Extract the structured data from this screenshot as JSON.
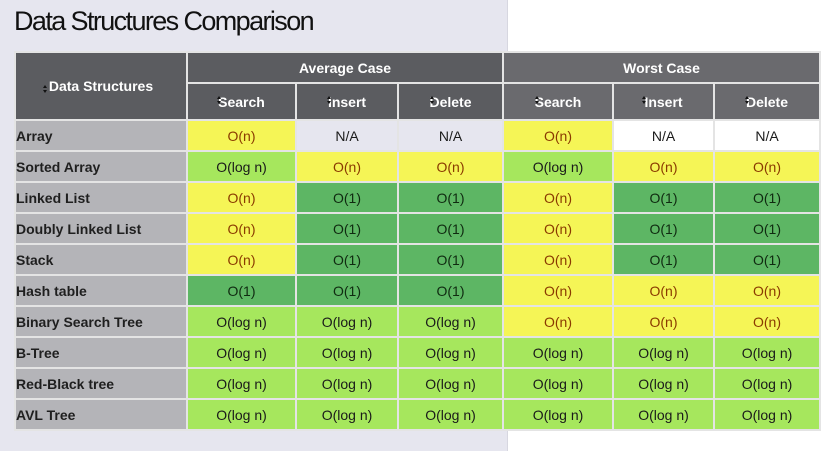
{
  "title": "Data Structures Comparison",
  "header": {
    "row_label": "Data Structures",
    "groups": [
      "Average Case",
      "Worst Case"
    ],
    "ops": [
      "Search",
      "Insert",
      "Delete",
      "Search",
      "Insert",
      "Delete"
    ]
  },
  "colors": {
    "yellow": "#f5f556",
    "yellow_green": "#a6e75d",
    "green": "#5db664",
    "header": "#5b5c60"
  },
  "rows": [
    {
      "name": "Array",
      "cells": [
        {
          "text": "O(n)",
          "color": "yellow"
        },
        {
          "text": "N/A",
          "color": "none"
        },
        {
          "text": "N/A",
          "color": "none"
        },
        {
          "text": "O(n)",
          "color": "yellow"
        },
        {
          "text": "N/A",
          "color": "none"
        },
        {
          "text": "N/A",
          "color": "none"
        }
      ]
    },
    {
      "name": "Sorted Array",
      "cells": [
        {
          "text": "O(log n)",
          "color": "yellow_green"
        },
        {
          "text": "O(n)",
          "color": "yellow"
        },
        {
          "text": "O(n)",
          "color": "yellow"
        },
        {
          "text": "O(log n)",
          "color": "yellow_green"
        },
        {
          "text": "O(n)",
          "color": "yellow"
        },
        {
          "text": "O(n)",
          "color": "yellow"
        }
      ]
    },
    {
      "name": "Linked List",
      "cells": [
        {
          "text": "O(n)",
          "color": "yellow"
        },
        {
          "text": "O(1)",
          "color": "green"
        },
        {
          "text": "O(1)",
          "color": "green"
        },
        {
          "text": "O(n)",
          "color": "yellow"
        },
        {
          "text": "O(1)",
          "color": "green"
        },
        {
          "text": "O(1)",
          "color": "green"
        }
      ]
    },
    {
      "name": "Doubly Linked List",
      "cells": [
        {
          "text": "O(n)",
          "color": "yellow"
        },
        {
          "text": "O(1)",
          "color": "green"
        },
        {
          "text": "O(1)",
          "color": "green"
        },
        {
          "text": "O(n)",
          "color": "yellow"
        },
        {
          "text": "O(1)",
          "color": "green"
        },
        {
          "text": "O(1)",
          "color": "green"
        }
      ]
    },
    {
      "name": "Stack",
      "cells": [
        {
          "text": "O(n)",
          "color": "yellow"
        },
        {
          "text": "O(1)",
          "color": "green"
        },
        {
          "text": "O(1)",
          "color": "green"
        },
        {
          "text": "O(n)",
          "color": "yellow"
        },
        {
          "text": "O(1)",
          "color": "green"
        },
        {
          "text": "O(1)",
          "color": "green"
        }
      ]
    },
    {
      "name": "Hash table",
      "cells": [
        {
          "text": "O(1)",
          "color": "green"
        },
        {
          "text": "O(1)",
          "color": "green"
        },
        {
          "text": "O(1)",
          "color": "green"
        },
        {
          "text": "O(n)",
          "color": "yellow"
        },
        {
          "text": "O(n)",
          "color": "yellow"
        },
        {
          "text": "O(n)",
          "color": "yellow"
        }
      ]
    },
    {
      "name": "Binary Search Tree",
      "cells": [
        {
          "text": "O(log n)",
          "color": "yellow_green"
        },
        {
          "text": "O(log n)",
          "color": "yellow_green"
        },
        {
          "text": "O(log n)",
          "color": "yellow_green"
        },
        {
          "text": "O(n)",
          "color": "yellow"
        },
        {
          "text": "O(n)",
          "color": "yellow"
        },
        {
          "text": "O(n)",
          "color": "yellow"
        }
      ]
    },
    {
      "name": "B-Tree",
      "cells": [
        {
          "text": "O(log n)",
          "color": "yellow_green"
        },
        {
          "text": "O(log n)",
          "color": "yellow_green"
        },
        {
          "text": "O(log n)",
          "color": "yellow_green"
        },
        {
          "text": "O(log n)",
          "color": "yellow_green"
        },
        {
          "text": "O(log n)",
          "color": "yellow_green"
        },
        {
          "text": "O(log n)",
          "color": "yellow_green"
        }
      ]
    },
    {
      "name": "Red-Black tree",
      "cells": [
        {
          "text": "O(log n)",
          "color": "yellow_green"
        },
        {
          "text": "O(log n)",
          "color": "yellow_green"
        },
        {
          "text": "O(log n)",
          "color": "yellow_green"
        },
        {
          "text": "O(log n)",
          "color": "yellow_green"
        },
        {
          "text": "O(log n)",
          "color": "yellow_green"
        },
        {
          "text": "O(log n)",
          "color": "yellow_green"
        }
      ]
    },
    {
      "name": "AVL Tree",
      "cells": [
        {
          "text": "O(log n)",
          "color": "yellow_green"
        },
        {
          "text": "O(log n)",
          "color": "yellow_green"
        },
        {
          "text": "O(log n)",
          "color": "yellow_green"
        },
        {
          "text": "O(log n)",
          "color": "yellow_green"
        },
        {
          "text": "O(log n)",
          "color": "yellow_green"
        },
        {
          "text": "O(log n)",
          "color": "yellow_green"
        }
      ]
    }
  ]
}
